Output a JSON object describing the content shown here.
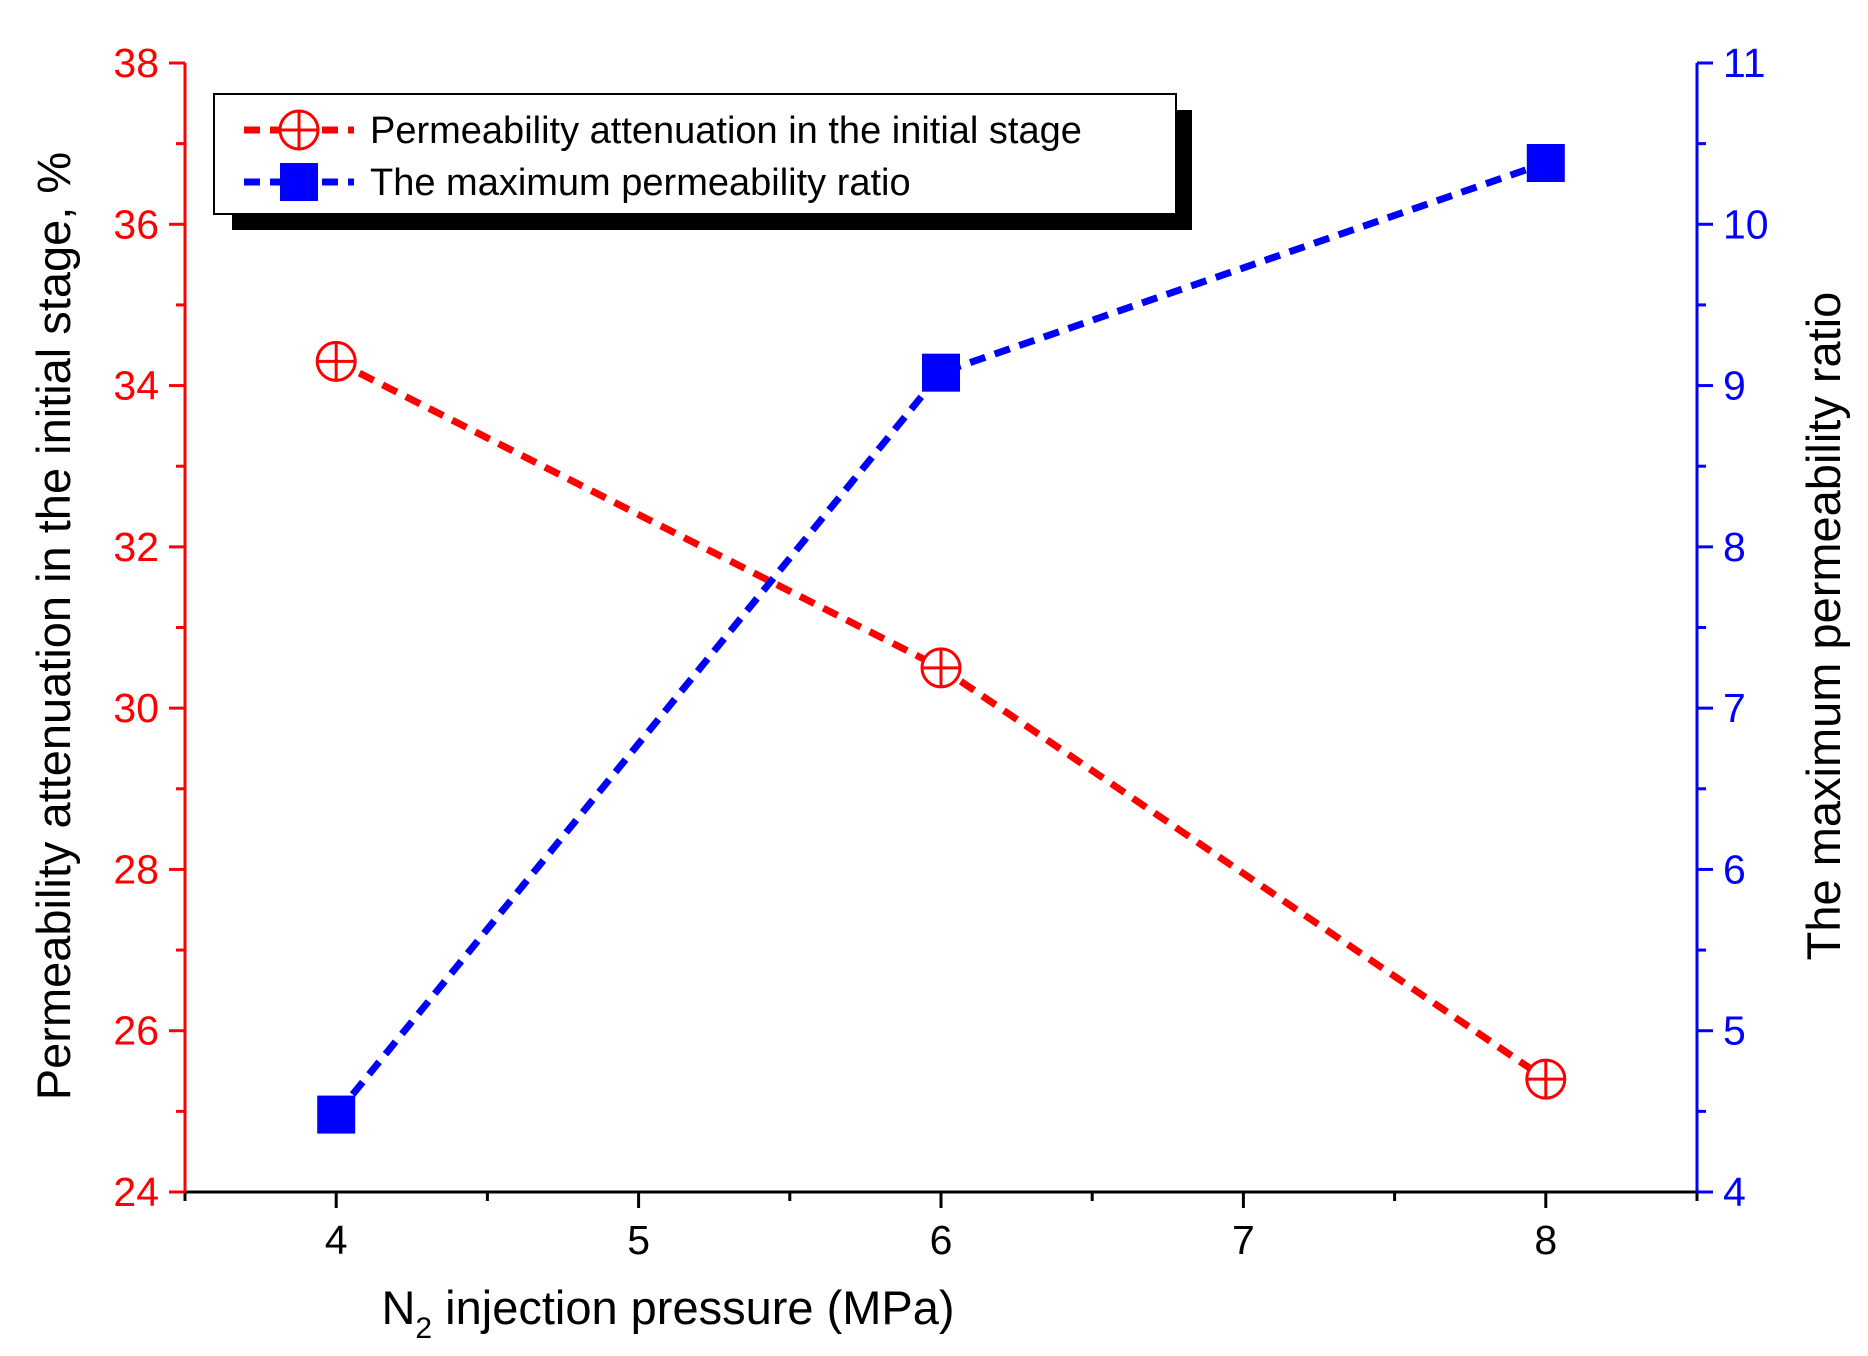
{
  "chart_data": {
    "type": "line",
    "title": "",
    "xlabel": "N2 injection pressure (MPa)",
    "xlabel_main": "N",
    "xlabel_sub": "2",
    "xlabel_rest": " injection pressure (MPa)",
    "ylabel_left": "Permeability attenuation in the initial stage, %",
    "ylabel_right": "The maximum permeability ratio",
    "x_ticks": [
      4,
      5,
      6,
      7,
      8
    ],
    "x_range": [
      3.5,
      8.5
    ],
    "y_left_ticks": [
      24,
      26,
      28,
      30,
      32,
      34,
      36,
      38
    ],
    "y_left_range": [
      24,
      38
    ],
    "y_right_ticks": [
      4,
      5,
      6,
      7,
      8,
      9,
      10,
      11
    ],
    "y_right_range": [
      4,
      11
    ],
    "legend_position": "top-left",
    "series": [
      {
        "name": "Permeability attenuation in the initial stage",
        "axis": "left",
        "marker": "circle-plus",
        "color": "#ff0000",
        "x": [
          4,
          6,
          8
        ],
        "values": [
          34.3,
          30.5,
          25.4
        ]
      },
      {
        "name": "The maximum permeability ratio",
        "axis": "right",
        "marker": "square",
        "color": "#0000ff",
        "x": [
          4,
          6,
          8
        ],
        "values": [
          4.48,
          9.08,
          10.38
        ]
      }
    ]
  }
}
